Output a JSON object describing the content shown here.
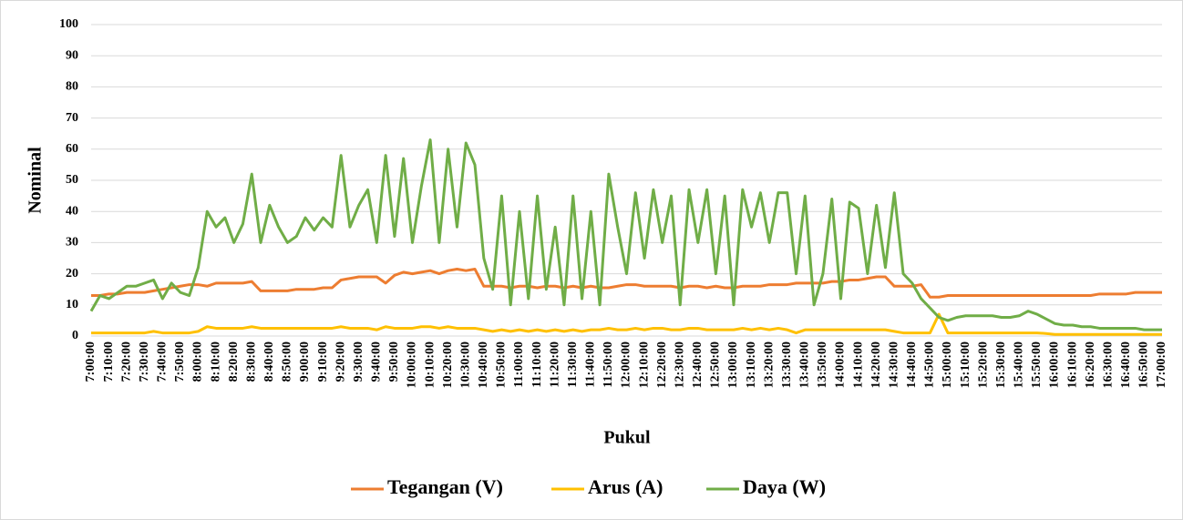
{
  "chart_data": {
    "type": "line",
    "y_label": "Nominal",
    "x_label": "Pukul",
    "ylim": [
      0,
      100
    ],
    "yticks": [
      0,
      10,
      20,
      30,
      40,
      50,
      60,
      70,
      80,
      90,
      100
    ],
    "grid": true,
    "legend": "bottom",
    "categories": [
      "7:00:00",
      null,
      "7:10:00",
      null,
      "7:20:00",
      null,
      "7:30:00",
      null,
      "7:40:00",
      null,
      "7:50:00",
      null,
      "8:00:00",
      null,
      "8:10:00",
      null,
      "8:20:00",
      null,
      "8:30:00",
      null,
      "8:40:00",
      null,
      "8:50:00",
      null,
      "9:00:00",
      null,
      "9:10:00",
      null,
      "9:20:00",
      null,
      "9:30:00",
      null,
      "9:40:00",
      null,
      "9:50:00",
      null,
      "10:00:00",
      null,
      "10:10:00",
      null,
      "10:20:00",
      null,
      "10:30:00",
      null,
      "10:40:00",
      null,
      "10:50:00",
      null,
      "11:00:00",
      null,
      "11:10:00",
      null,
      "11:20:00",
      null,
      "11:30:00",
      null,
      "11:40:00",
      null,
      "11:50:00",
      null,
      "12:00:00",
      null,
      "12:10:00",
      null,
      "12:20:00",
      null,
      "12:30:00",
      null,
      "12:40:00",
      null,
      "12:50:00",
      null,
      "13:00:00",
      null,
      "13:10:00",
      null,
      "13:20:00",
      null,
      "13:30:00",
      null,
      "13:40:00",
      null,
      "13:50:00",
      null,
      "14:00:00",
      null,
      "14:10:00",
      null,
      "14:20:00",
      null,
      "14:30:00",
      null,
      "14:40:00",
      null,
      "14:50:00",
      null,
      "15:00:00",
      null,
      "15:10:00",
      null,
      "15:20:00",
      null,
      "15:30:00",
      null,
      "15:40:00",
      null,
      "15:50:00",
      null,
      "16:00:00",
      null,
      "16:10:00",
      null,
      "16:20:00",
      null,
      "16:30:00",
      null,
      "16:40:00",
      null,
      "16:50:00",
      null,
      "17:00:00"
    ],
    "series": [
      {
        "name": "Tegangan (V)",
        "color": "#ed7d31",
        "values": [
          13,
          13,
          13.5,
          13.5,
          14,
          14,
          14,
          14.5,
          15,
          15.5,
          16,
          16.5,
          16.5,
          16,
          17,
          17,
          17,
          17,
          17.5,
          14.5,
          14.5,
          14.5,
          14.5,
          15,
          15,
          15,
          15.5,
          15.5,
          18,
          18.5,
          19,
          19,
          19,
          17,
          19.5,
          20.5,
          20,
          20.5,
          21,
          20,
          21,
          21.5,
          21,
          21.5,
          16,
          16,
          16,
          15.5,
          16,
          16,
          15.5,
          16,
          16,
          15.5,
          16,
          15.5,
          16,
          15.5,
          15.5,
          16,
          16.5,
          16.5,
          16,
          16,
          16,
          16,
          15.5,
          16,
          16,
          15.5,
          16,
          15.5,
          15.5,
          16,
          16,
          16,
          16.5,
          16.5,
          16.5,
          17,
          17,
          17,
          17,
          17.5,
          17.5,
          18,
          18,
          18.5,
          19,
          19,
          16,
          16,
          16,
          16.5,
          12.5,
          12.5,
          13,
          13,
          13,
          13,
          13,
          13,
          13,
          13,
          13,
          13,
          13,
          13,
          13,
          13,
          13,
          13,
          13,
          13.5,
          13.5,
          13.5,
          13.5,
          14,
          14,
          14,
          14
        ]
      },
      {
        "name": "Arus (A)",
        "color": "#ffc000",
        "values": [
          1,
          1,
          1,
          1,
          1,
          1,
          1,
          1.5,
          1,
          1,
          1,
          1,
          1.5,
          3,
          2.5,
          2.5,
          2.5,
          2.5,
          3,
          2.5,
          2.5,
          2.5,
          2.5,
          2.5,
          2.5,
          2.5,
          2.5,
          2.5,
          3,
          2.5,
          2.5,
          2.5,
          2,
          3,
          2.5,
          2.5,
          2.5,
          3,
          3,
          2.5,
          3,
          2.5,
          2.5,
          2.5,
          2,
          1.5,
          2,
          1.5,
          2,
          1.5,
          2,
          1.5,
          2,
          1.5,
          2,
          1.5,
          2,
          2,
          2.5,
          2,
          2,
          2.5,
          2,
          2.5,
          2.5,
          2,
          2,
          2.5,
          2.5,
          2,
          2,
          2,
          2,
          2.5,
          2,
          2.5,
          2,
          2.5,
          2,
          1,
          2,
          2,
          2,
          2,
          2,
          2,
          2,
          2,
          2,
          2,
          1.5,
          1,
          1,
          1,
          1,
          7,
          1,
          1,
          1,
          1,
          1,
          1,
          1,
          1,
          1,
          1,
          1,
          0.8,
          0.5,
          0.5,
          0.5,
          0.5,
          0.5,
          0.5,
          0.5,
          0.5,
          0.5,
          0.5,
          0.5,
          0.5,
          0.5
        ]
      },
      {
        "name": "Daya (W)",
        "color": "#70ad47",
        "values": [
          8,
          13,
          12,
          14,
          16,
          16,
          17,
          18,
          12,
          17,
          14,
          13,
          22,
          40,
          35,
          38,
          30,
          36,
          52,
          30,
          42,
          35,
          30,
          32,
          38,
          34,
          38,
          35,
          58,
          35,
          42,
          47,
          30,
          58,
          32,
          57,
          30,
          48,
          63,
          30,
          60,
          35,
          62,
          55,
          25,
          15,
          45,
          10,
          40,
          12,
          45,
          15,
          35,
          10,
          45,
          12,
          40,
          10,
          52,
          35,
          20,
          46,
          25,
          47,
          30,
          45,
          10,
          47,
          30,
          47,
          20,
          45,
          10,
          47,
          35,
          46,
          30,
          46,
          46,
          20,
          45,
          10,
          20,
          44,
          12,
          43,
          41,
          20,
          42,
          22,
          46,
          20,
          17,
          12,
          9,
          6,
          5,
          6,
          6.5,
          6.5,
          6.5,
          6.5,
          6,
          6,
          6.5,
          8,
          7,
          5.5,
          4,
          3.5,
          3.5,
          3,
          3,
          2.5,
          2.5,
          2.5,
          2.5,
          2.5,
          2,
          2,
          2
        ]
      }
    ]
  }
}
